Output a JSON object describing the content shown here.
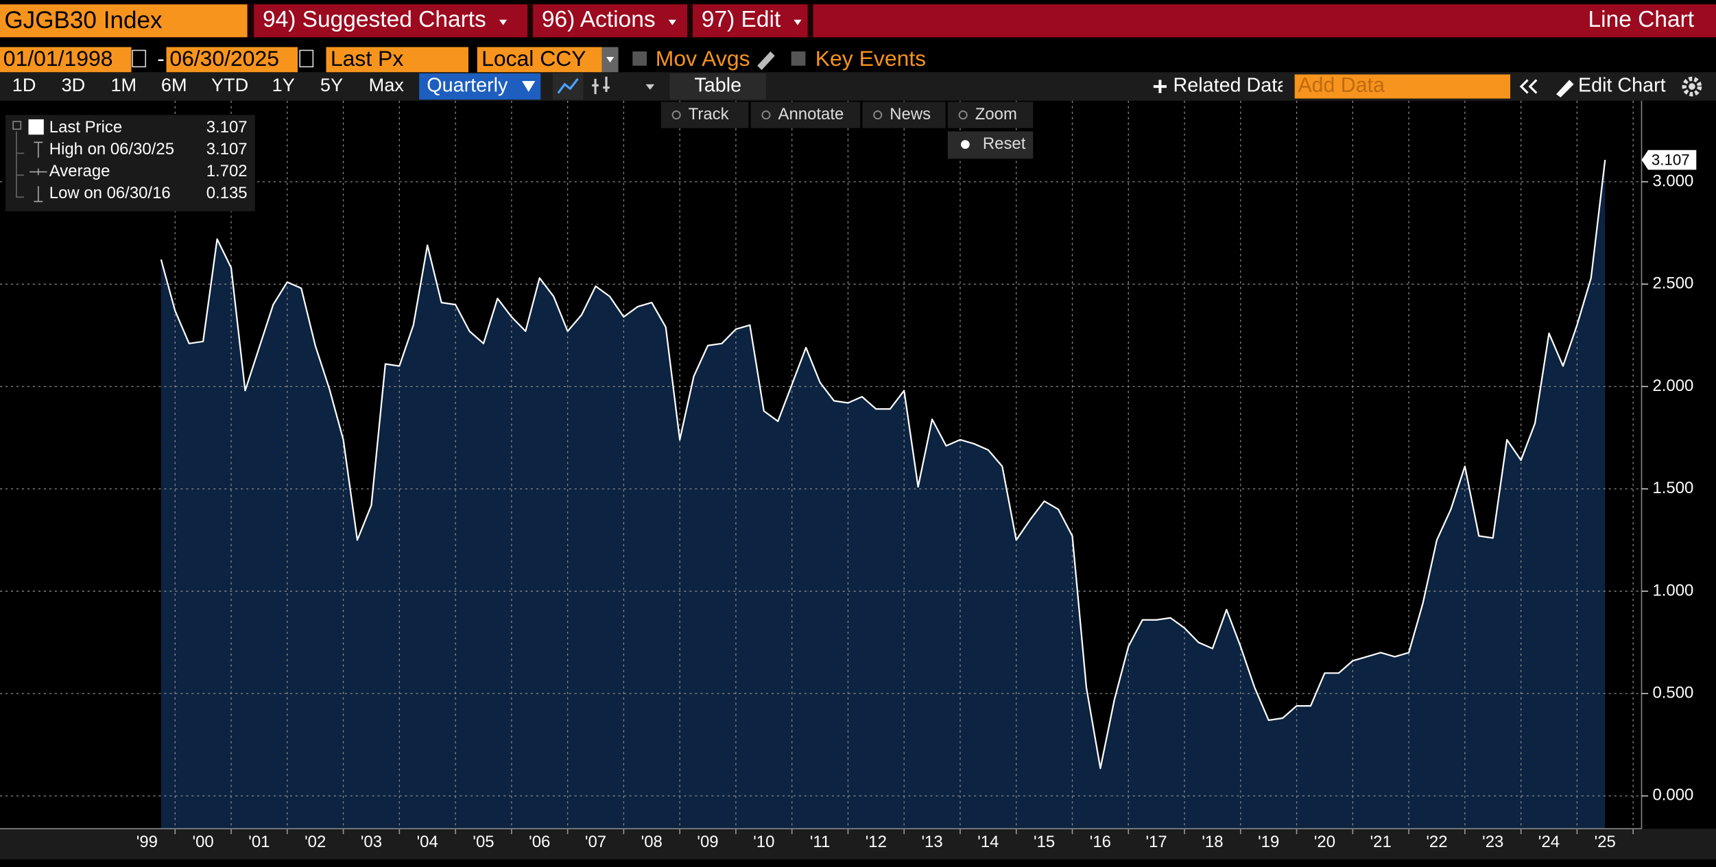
{
  "ui": {
    "ticker": "GJGB30 Index",
    "menus": [
      "94) Suggested Charts",
      "96) Actions",
      "97) Edit"
    ],
    "chart_kind": "Line Chart",
    "start_date": "01/01/1998",
    "date_sep": "-",
    "end_date": "06/30/2025",
    "field": "Last Px",
    "currency": "Local CCY",
    "options": [
      "Mov Avgs",
      "Key Events"
    ],
    "ranges": [
      "1D",
      "3D",
      "1M",
      "6M",
      "YTD",
      "1Y",
      "5Y",
      "Max"
    ],
    "period": "Quarterly",
    "table": "Table",
    "related": "Related Data",
    "add_data": "Add Data",
    "edit_chart": "Edit Chart",
    "tools": [
      "Track",
      "Annotate",
      "News",
      "Zoom"
    ],
    "reset": "Reset"
  },
  "chart_data": {
    "type": "area",
    "x": [
      1999.75,
      2000,
      2000.25,
      2000.5,
      2000.75,
      2001,
      2001.25,
      2001.5,
      2001.75,
      2002,
      2002.25,
      2002.5,
      2002.75,
      2003,
      2003.25,
      2003.5,
      2003.75,
      2004,
      2004.25,
      2004.5,
      2004.75,
      2005,
      2005.25,
      2005.5,
      2005.75,
      2006,
      2006.25,
      2006.5,
      2006.75,
      2007,
      2007.25,
      2007.5,
      2007.75,
      2008,
      2008.25,
      2008.5,
      2008.75,
      2009,
      2009.25,
      2009.5,
      2009.75,
      2010,
      2010.25,
      2010.5,
      2010.75,
      2011,
      2011.25,
      2011.5,
      2011.75,
      2012,
      2012.25,
      2012.5,
      2012.75,
      2013,
      2013.25,
      2013.5,
      2013.75,
      2014,
      2014.25,
      2014.5,
      2014.75,
      2015,
      2015.25,
      2015.5,
      2015.75,
      2016,
      2016.25,
      2016.5,
      2016.75,
      2017,
      2017.25,
      2017.5,
      2017.75,
      2018,
      2018.25,
      2018.5,
      2018.75,
      2019,
      2019.25,
      2019.5,
      2019.75,
      2020,
      2020.25,
      2020.5,
      2020.75,
      2021,
      2021.25,
      2021.5,
      2021.75,
      2022,
      2022.25,
      2022.5,
      2022.75,
      2023,
      2023.25,
      2023.5,
      2023.75,
      2024,
      2024.25,
      2024.5,
      2024.75,
      2025,
      2025.25,
      2025.5
    ],
    "series": [
      {
        "name": "Last Price",
        "color": "#ffffff",
        "fill": "#0c2341",
        "values": [
          2.62,
          2.37,
          2.21,
          2.22,
          2.72,
          2.58,
          1.98,
          2.19,
          2.4,
          2.51,
          2.48,
          2.2,
          1.99,
          1.74,
          1.25,
          1.42,
          2.11,
          2.1,
          2.3,
          2.69,
          2.41,
          2.4,
          2.27,
          2.21,
          2.43,
          2.34,
          2.27,
          2.53,
          2.44,
          2.27,
          2.35,
          2.49,
          2.44,
          2.34,
          2.39,
          2.41,
          2.29,
          1.74,
          2.05,
          2.2,
          2.21,
          2.28,
          2.3,
          1.88,
          1.83,
          2.01,
          2.19,
          2.02,
          1.93,
          1.92,
          1.95,
          1.89,
          1.89,
          1.98,
          1.51,
          1.84,
          1.71,
          1.74,
          1.72,
          1.69,
          1.61,
          1.25,
          1.35,
          1.44,
          1.4,
          1.27,
          0.53,
          0.135,
          0.47,
          0.73,
          0.86,
          0.86,
          0.87,
          0.82,
          0.75,
          0.72,
          0.91,
          0.73,
          0.53,
          0.37,
          0.38,
          0.44,
          0.44,
          0.6,
          0.6,
          0.66,
          0.68,
          0.7,
          0.68,
          0.7,
          0.94,
          1.25,
          1.4,
          1.61,
          1.27,
          1.26,
          1.74,
          1.64,
          1.82,
          2.26,
          2.1,
          2.3,
          2.53,
          3.107
        ]
      }
    ],
    "stats": [
      {
        "label": "High on 06/30/25",
        "value": 3.107
      },
      {
        "label": "Average",
        "value": 1.702
      },
      {
        "label": "Low on 06/30/16",
        "value": 0.135
      }
    ],
    "xlim": [
      1996.878,
      2026.151
    ],
    "xticks": [
      {
        "value": 1999.5,
        "label": "'99"
      },
      {
        "value": 2000.5,
        "label": "'00"
      },
      {
        "value": 2001.5,
        "label": "'01"
      },
      {
        "value": 2002.5,
        "label": "'02"
      },
      {
        "value": 2003.5,
        "label": "'03"
      },
      {
        "value": 2004.5,
        "label": "'04"
      },
      {
        "value": 2005.5,
        "label": "'05"
      },
      {
        "value": 2006.5,
        "label": "'06"
      },
      {
        "value": 2007.5,
        "label": "'07"
      },
      {
        "value": 2008.5,
        "label": "'08"
      },
      {
        "value": 2009.5,
        "label": "'09"
      },
      {
        "value": 2010.5,
        "label": "'10"
      },
      {
        "value": 2011.5,
        "label": "'11"
      },
      {
        "value": 2012.5,
        "label": "'12"
      },
      {
        "value": 2013.5,
        "label": "'13"
      },
      {
        "value": 2014.5,
        "label": "'14"
      },
      {
        "value": 2015.5,
        "label": "'15"
      },
      {
        "value": 2016.5,
        "label": "'16"
      },
      {
        "value": 2017.5,
        "label": "'17"
      },
      {
        "value": 2018.5,
        "label": "'18"
      },
      {
        "value": 2019.5,
        "label": "'19"
      },
      {
        "value": 2020.5,
        "label": "'20"
      },
      {
        "value": 2021.5,
        "label": "'21"
      },
      {
        "value": 2022.5,
        "label": "'22"
      },
      {
        "value": 2023.5,
        "label": "'23"
      },
      {
        "value": 2024.5,
        "label": "'24"
      },
      {
        "value": 2025.5,
        "label": "'25"
      }
    ],
    "xgrid": [
      2000,
      2001,
      2002,
      2003,
      2004,
      2005,
      2006,
      2007,
      2008,
      2009,
      2010,
      2011,
      2012,
      2013,
      2014,
      2015,
      2016,
      2017,
      2018,
      2019,
      2020,
      2021,
      2022,
      2023,
      2024,
      2025,
      2026
    ],
    "ylim": [
      -0.16,
      3.396
    ],
    "yticks": [
      {
        "value": 0,
        "label": "0.000"
      },
      {
        "value": 0.5,
        "label": "0.500"
      },
      {
        "value": 1,
        "label": "1.000"
      },
      {
        "value": 1.5,
        "label": "1.500"
      },
      {
        "value": 2,
        "label": "2.000"
      },
      {
        "value": 2.5,
        "label": "2.500"
      },
      {
        "value": 3,
        "label": "3.000"
      }
    ],
    "grid": true
  }
}
